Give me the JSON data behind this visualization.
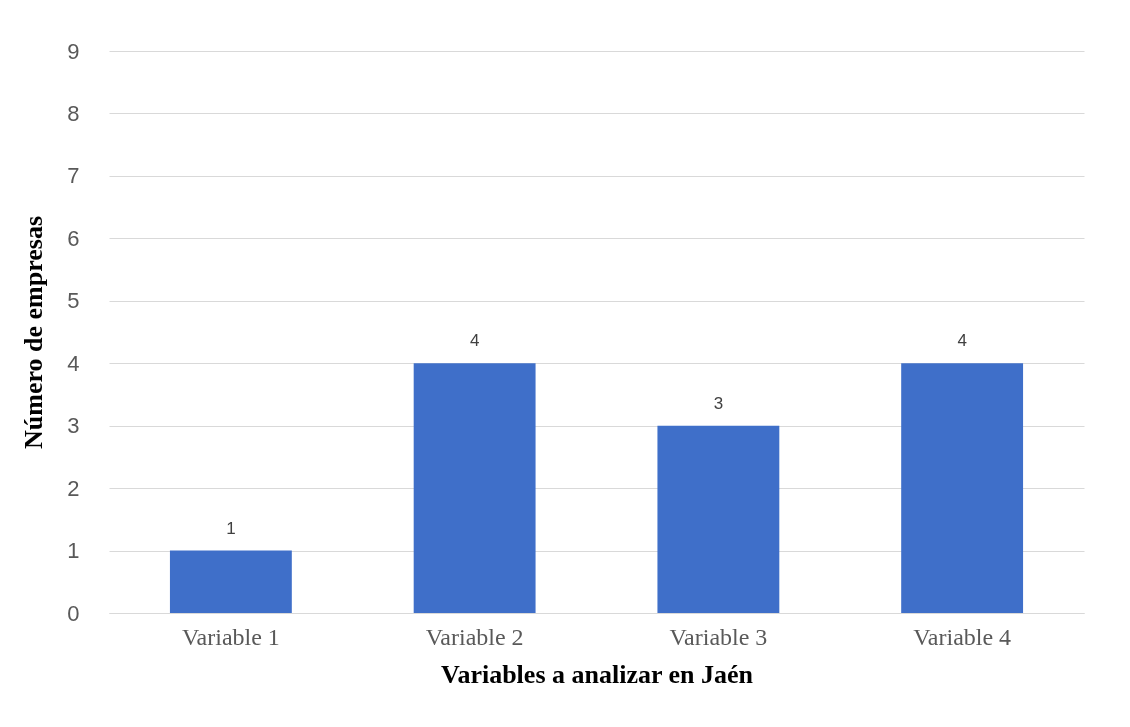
{
  "chart_data": {
    "type": "bar",
    "xlabel": "Variables a analizar en Jaén",
    "ylabel": "Número de empresas",
    "categories": [
      "Variable 1",
      "Variable 2",
      "Variable 3",
      "Variable 4"
    ],
    "values": [
      1,
      4,
      3,
      4
    ],
    "color": "#3f6fc9",
    "ylim": [
      0,
      9
    ],
    "yticks": [
      0,
      1,
      2,
      3,
      4,
      5,
      6,
      7,
      8,
      9
    ],
    "grid": "y",
    "data_labels": true
  }
}
